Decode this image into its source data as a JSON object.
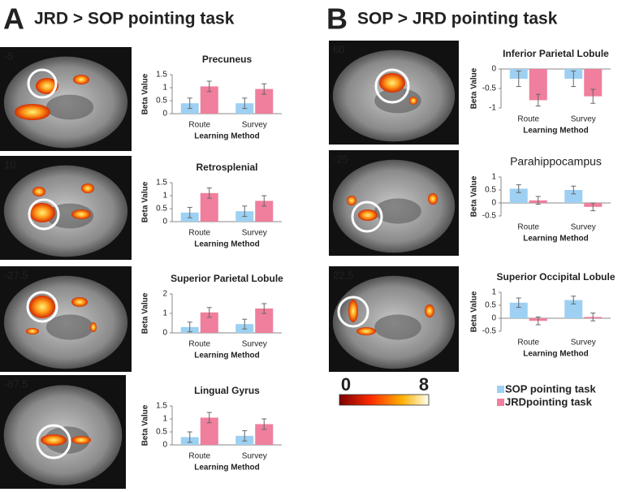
{
  "panels": [
    {
      "letter": "A",
      "title": "JRD > SOP pointing task",
      "slices": [
        "-5",
        "10",
        "-27.5",
        "-87.5"
      ]
    },
    {
      "letter": "B",
      "title": "SOP > JRD pointing task",
      "slices": [
        "60",
        "-25",
        "22.5"
      ]
    }
  ],
  "legend": [
    {
      "name": "SOP pointing task",
      "color": "#9dd0f2"
    },
    {
      "name": "JRDpointing task",
      "color": "#ef7f9c"
    }
  ],
  "colorbar": {
    "ticks": [
      0,
      8
    ]
  },
  "chart_data": [
    {
      "type": "bar",
      "title": "Precuneus",
      "y_label": "Beta Value",
      "x_label": "Learning Method",
      "categories": [
        "Route",
        "Survey"
      ],
      "ylim": [
        0,
        1.5
      ],
      "yticks": [
        0,
        0.5,
        1,
        1.5
      ],
      "series": [
        {
          "values": [
            0.4,
            0.4
          ],
          "errors": [
            0.2,
            0.2
          ]
        },
        {
          "values": [
            1.05,
            0.95
          ],
          "errors": [
            0.2,
            0.2
          ]
        }
      ]
    },
    {
      "type": "bar",
      "title": "Retrosplenial",
      "y_label": "Beta Value",
      "x_label": "Learning Method",
      "categories": [
        "Route",
        "Survey"
      ],
      "ylim": [
        0,
        1.5
      ],
      "yticks": [
        0,
        0.5,
        1,
        1.5
      ],
      "series": [
        {
          "values": [
            0.35,
            0.4
          ],
          "errors": [
            0.2,
            0.2
          ]
        },
        {
          "values": [
            1.1,
            0.8
          ],
          "errors": [
            0.2,
            0.2
          ]
        }
      ]
    },
    {
      "type": "bar",
      "title": "Superior Parietal Lobule",
      "y_label": "Beta Value",
      "x_label": "Learning Method",
      "categories": [
        "Route",
        "Survey"
      ],
      "ylim": [
        0,
        2
      ],
      "yticks": [
        0,
        1,
        2
      ],
      "series": [
        {
          "values": [
            0.3,
            0.45
          ],
          "errors": [
            0.25,
            0.25
          ]
        },
        {
          "values": [
            1.05,
            1.25
          ],
          "errors": [
            0.25,
            0.25
          ]
        }
      ]
    },
    {
      "type": "bar",
      "title": "Lingual Gyrus",
      "y_label": "Beta Value",
      "x_label": "Learning Method",
      "categories": [
        "Route",
        "Survey"
      ],
      "ylim": [
        0,
        1.5
      ],
      "yticks": [
        0,
        0.5,
        1,
        1.5
      ],
      "series": [
        {
          "values": [
            0.3,
            0.35
          ],
          "errors": [
            0.2,
            0.2
          ]
        },
        {
          "values": [
            1.05,
            0.8
          ],
          "errors": [
            0.2,
            0.2
          ]
        }
      ]
    },
    {
      "type": "bar",
      "title": "Inferior Parietal Lobule",
      "y_label": "Beta Value",
      "x_label": "Learning Method",
      "categories": [
        "Route",
        "Survey"
      ],
      "ylim": [
        -1,
        0
      ],
      "yticks": [
        -1,
        -0.5,
        0
      ],
      "series": [
        {
          "values": [
            -0.25,
            -0.25
          ],
          "errors": [
            0.2,
            0.2
          ]
        },
        {
          "values": [
            -0.8,
            -0.7
          ],
          "errors": [
            0.15,
            0.18
          ]
        }
      ]
    },
    {
      "type": "bar",
      "title": "Parahippocampus",
      "y_label": "Beta Value",
      "x_label": "Learning Method",
      "categories": [
        "Route",
        "Survey"
      ],
      "ylim": [
        -0.5,
        1
      ],
      "yticks": [
        -0.5,
        0,
        0.5,
        1
      ],
      "series": [
        {
          "values": [
            0.55,
            0.5
          ],
          "errors": [
            0.15,
            0.15
          ]
        },
        {
          "values": [
            0.1,
            -0.15
          ],
          "errors": [
            0.15,
            0.15
          ]
        }
      ]
    },
    {
      "type": "bar",
      "title": "Superior Occipital Lobule",
      "y_label": "Beta Value",
      "x_label": "Learning Method",
      "categories": [
        "Route",
        "Survey"
      ],
      "ylim": [
        -0.5,
        1
      ],
      "yticks": [
        -0.5,
        0,
        0.5,
        1
      ],
      "series": [
        {
          "values": [
            0.6,
            0.7
          ],
          "errors": [
            0.18,
            0.15
          ]
        },
        {
          "values": [
            -0.1,
            0.05
          ],
          "errors": [
            0.15,
            0.15
          ]
        }
      ]
    }
  ]
}
